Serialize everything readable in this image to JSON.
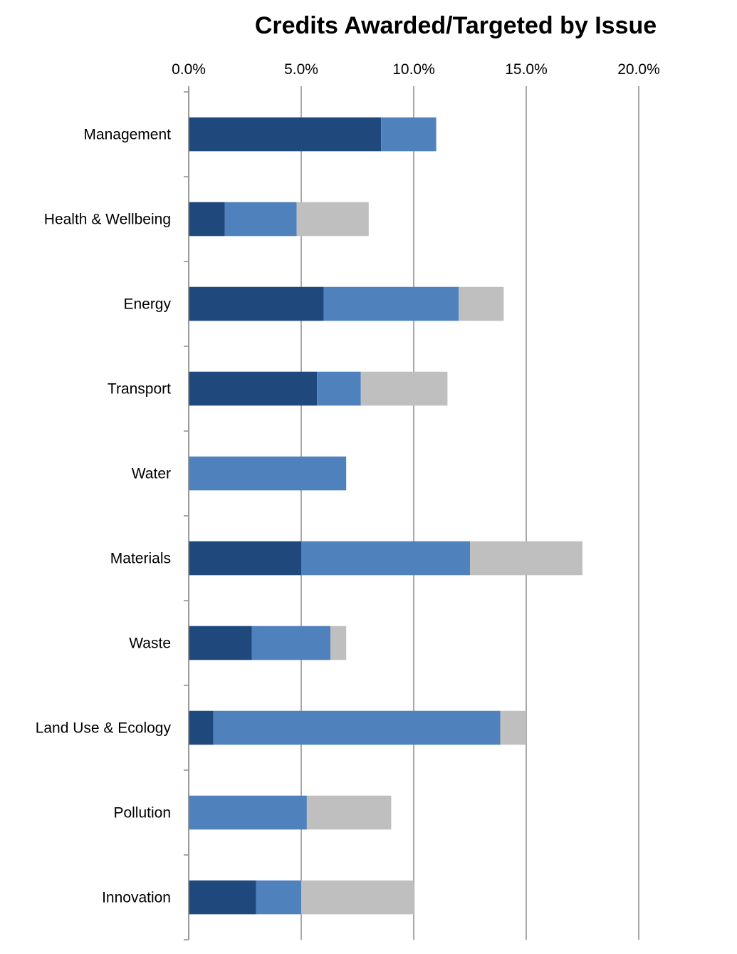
{
  "chart_data": {
    "type": "bar",
    "orientation": "horizontal",
    "stacked": true,
    "title": "Credits Awarded/Targeted by Issue",
    "xlim": [
      0,
      20
    ],
    "x_ticks": [
      0,
      5,
      10,
      15,
      20
    ],
    "x_tick_labels": [
      "0.0%",
      "5.0%",
      "10.0%",
      "15.0%",
      "20.0%"
    ],
    "x_axis_position": "top",
    "grid": true,
    "legend": "none",
    "categories": [
      "Management",
      "Health & Wellbeing",
      "Energy",
      "Transport",
      "Water",
      "Materials",
      "Waste",
      "Land Use & Ecology",
      "Pollution",
      "Innovation"
    ],
    "series": [
      {
        "color": "#1f497d",
        "values": [
          8.55,
          1.6,
          6.0,
          5.7,
          0.0,
          5.0,
          2.8,
          1.1,
          0.0,
          3.0
        ]
      },
      {
        "color": "#4f81bd",
        "values": [
          2.45,
          3.2,
          6.0,
          1.95,
          7.0,
          7.5,
          3.5,
          12.75,
          5.25,
          2.0
        ]
      },
      {
        "color": "#bfbfbf",
        "values": [
          0.0,
          3.2,
          2.0,
          3.85,
          0.0,
          5.0,
          0.7,
          1.15,
          3.75,
          5.0
        ]
      }
    ]
  }
}
